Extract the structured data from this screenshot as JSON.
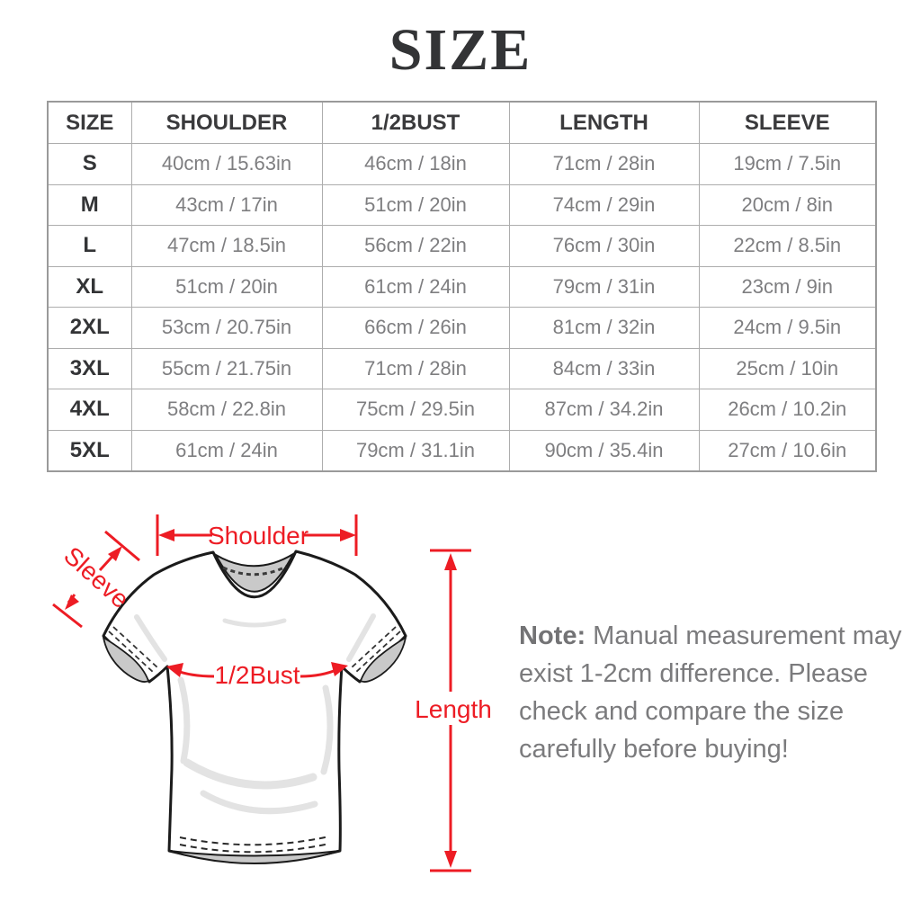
{
  "title": "SIZE",
  "table": {
    "columns": [
      "SIZE",
      "SHOULDER",
      "1/2BUST",
      "LENGTH",
      "SLEEVE"
    ],
    "rows": [
      [
        "S",
        "40cm / 15.63in",
        "46cm / 18in",
        "71cm / 28in",
        "19cm / 7.5in"
      ],
      [
        "M",
        "43cm / 17in",
        "51cm / 20in",
        "74cm / 29in",
        "20cm / 8in"
      ],
      [
        "L",
        "47cm / 18.5in",
        "56cm / 22in",
        "76cm / 30in",
        "22cm / 8.5in"
      ],
      [
        "XL",
        "51cm / 20in",
        "61cm / 24in",
        "79cm / 31in",
        "23cm / 9in"
      ],
      [
        "2XL",
        "53cm / 20.75in",
        "66cm / 26in",
        "81cm / 32in",
        "24cm / 9.5in"
      ],
      [
        "3XL",
        "55cm / 21.75in",
        "71cm / 28in",
        "84cm / 33in",
        "25cm / 10in"
      ],
      [
        "4XL",
        "58cm / 22.8in",
        "75cm / 29.5in",
        "87cm / 34.2in",
        "26cm / 10.2in"
      ],
      [
        "5XL",
        "61cm / 24in",
        "79cm / 31.1in",
        "90cm / 35.4in",
        "27cm / 10.6in"
      ]
    ]
  },
  "diagram": {
    "annotation_color": "#ed1c24",
    "labels": {
      "shoulder": "Shoulder",
      "sleeve": "Sleeve",
      "bust": "1/2Bust",
      "length": "Length"
    }
  },
  "note": {
    "label": "Note:",
    "lines": [
      "Manual measurement may",
      "exist 1-2cm difference. Please",
      "check and compare the size",
      "carefully before buying!"
    ]
  }
}
